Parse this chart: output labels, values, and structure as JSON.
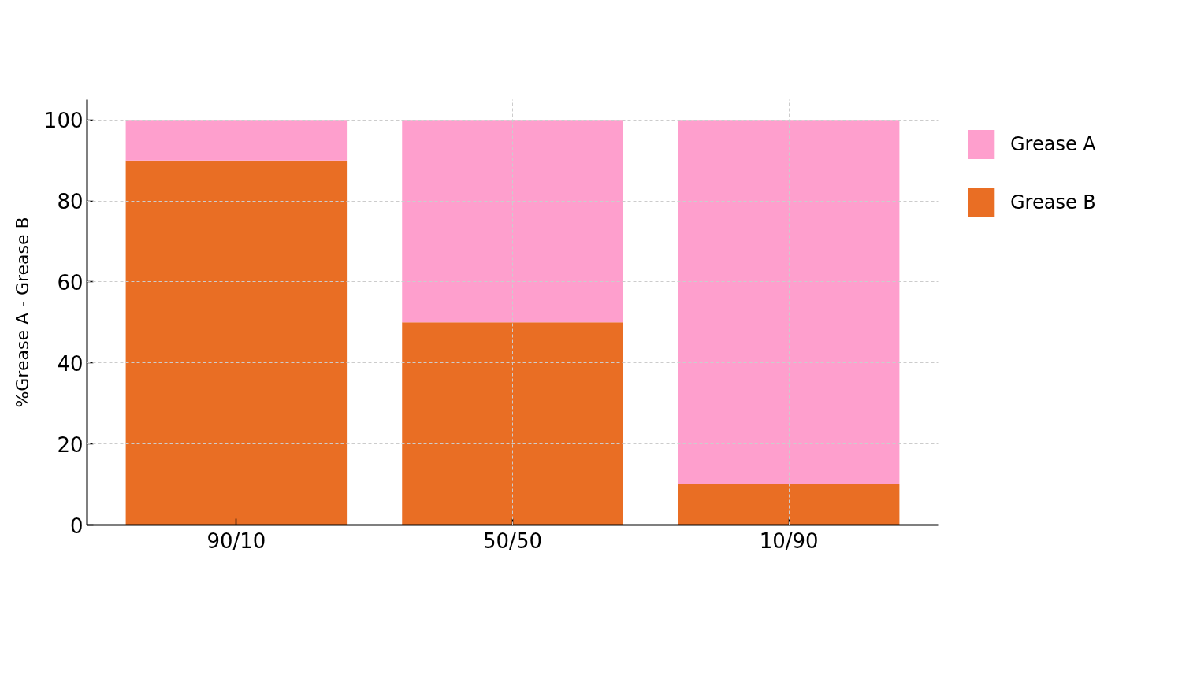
{
  "chart_data": {
    "type": "bar",
    "stacked": true,
    "categories": [
      "90/10",
      "50/50",
      "10/90"
    ],
    "series": [
      {
        "name": "Grease B",
        "color": "#e96e24",
        "values": [
          90,
          50,
          10
        ]
      },
      {
        "name": "Grease A",
        "color": "#fe9fcd",
        "values": [
          10,
          50,
          90
        ]
      }
    ],
    "ylabel": "%Grease A - Grease B",
    "ylim": [
      0,
      105
    ],
    "yticks": [
      0,
      20,
      40,
      60,
      80,
      100
    ],
    "grid": true,
    "legend": "top right"
  }
}
